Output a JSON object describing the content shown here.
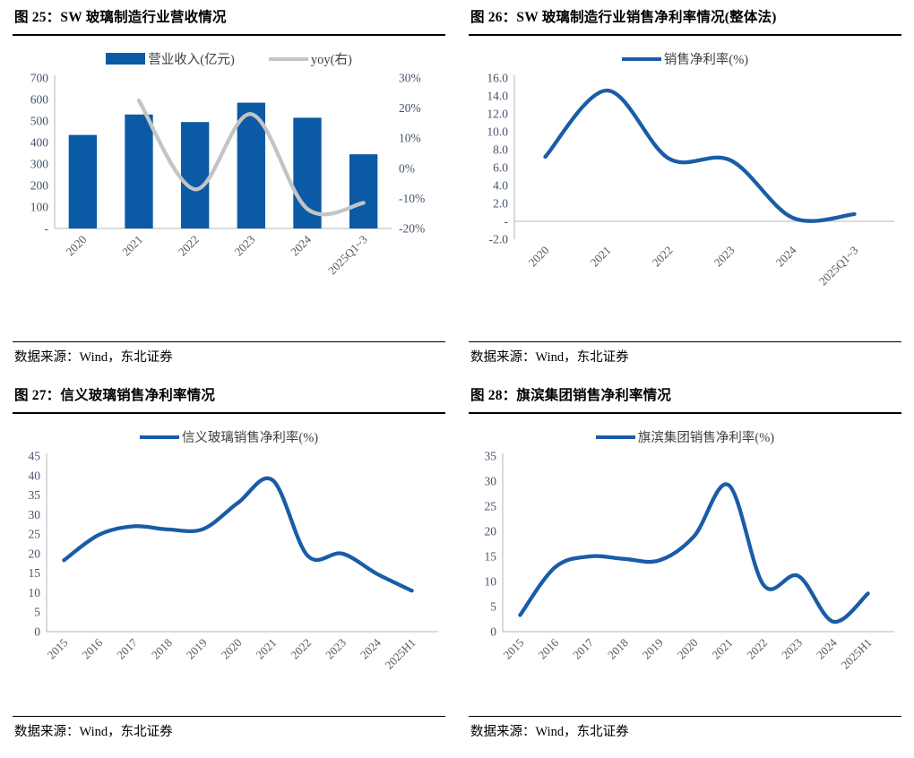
{
  "theme": {
    "bar_blue": "#0B5AA5",
    "line_blue": "#1A5CA8",
    "line_gray": "#C4C4C4",
    "axis_text": "#44546A",
    "category_text": "#595959",
    "axis_line": "#C5C5C5"
  },
  "panels": [
    {
      "title": "图 25：SW 玻璃制造行业营收情况",
      "source": "数据来源：Wind，东北证券"
    },
    {
      "title": "图 26：SW 玻璃制造行业销售净利率情况(整体法)",
      "source": "数据来源：Wind，东北证券"
    },
    {
      "title": "图 27：信义玻璃销售净利率情况",
      "source": "数据来源：Wind，东北证券"
    },
    {
      "title": "图 28：旗滨集团销售净利率情况",
      "source": "数据来源：Wind，东北证券"
    }
  ],
  "chart_data": [
    {
      "type": "bar",
      "title": "SW 玻璃制造行业营收情况",
      "categories": [
        "2020",
        "2021",
        "2022",
        "2023",
        "2024",
        "2025Q1~3"
      ],
      "series": [
        {
          "name": "营业收入(亿元)",
          "kind": "bar",
          "axis": "left",
          "color": "#0B5AA5",
          "values": [
            435,
            530,
            495,
            585,
            515,
            345
          ]
        },
        {
          "name": "yoy(右)",
          "kind": "line",
          "axis": "right",
          "color": "#C4C4C4",
          "values": [
            null,
            22.5,
            -7,
            18,
            -13.5,
            -11.5
          ]
        }
      ],
      "left_axis": {
        "min": 0,
        "max": 700,
        "tick_labels": [
          "700",
          "600",
          "500",
          "400",
          "300",
          "200",
          "100",
          "-"
        ]
      },
      "right_axis": {
        "min": -20,
        "max": 30,
        "tick_labels": [
          "30%",
          "20%",
          "10%",
          "0%",
          "-10%",
          "-20%"
        ]
      },
      "legend_position": "top",
      "grid": false
    },
    {
      "type": "line",
      "title": "SW 玻璃制造行业销售净利率情况(整体法)",
      "categories": [
        "2020",
        "2021",
        "2022",
        "2023",
        "2024",
        "2025Q1~3"
      ],
      "series": [
        {
          "name": "销售净利率(%)",
          "kind": "line",
          "axis": "left",
          "color": "#1A5CA8",
          "values": [
            7.2,
            14.6,
            7.0,
            6.8,
            0.4,
            0.8
          ]
        }
      ],
      "left_axis": {
        "min": -2,
        "max": 16,
        "tick_labels": [
          "16.0",
          "14.0",
          "12.0",
          "10.0",
          "8.0",
          "6.0",
          "4.0",
          "2.0",
          "-",
          "-2.0"
        ]
      },
      "legend_position": "top",
      "grid": false
    },
    {
      "type": "line",
      "title": "信义玻璃销售净利率情况",
      "categories": [
        "2015",
        "2016",
        "2017",
        "2018",
        "2019",
        "2020",
        "2021",
        "2022",
        "2023",
        "2024",
        "2025H1"
      ],
      "series": [
        {
          "name": "信义玻璃销售净利率(%)",
          "kind": "line",
          "axis": "left",
          "color": "#1A5CA8",
          "values": [
            18.3,
            24.8,
            27.0,
            26.2,
            26.3,
            33.0,
            38.8,
            19.5,
            20.0,
            14.8,
            10.5
          ]
        }
      ],
      "left_axis": {
        "min": 0,
        "max": 45,
        "tick_labels": [
          "45",
          "40",
          "35",
          "30",
          "25",
          "20",
          "15",
          "10",
          "5",
          "0"
        ]
      },
      "legend_position": "top",
      "grid": false
    },
    {
      "type": "line",
      "title": "旗滨集团销售净利率情况",
      "categories": [
        "2015",
        "2016",
        "2017",
        "2018",
        "2019",
        "2020",
        "2021",
        "2022",
        "2023",
        "2024",
        "2025H1"
      ],
      "series": [
        {
          "name": "旗滨集团销售净利率(%)",
          "kind": "line",
          "axis": "left",
          "color": "#1A5CA8",
          "values": [
            3.3,
            12.8,
            15.0,
            14.5,
            14.2,
            19.0,
            29.2,
            9.3,
            11.1,
            2.0,
            7.6
          ]
        }
      ],
      "left_axis": {
        "min": 0,
        "max": 35,
        "tick_labels": [
          "35",
          "30",
          "25",
          "20",
          "15",
          "10",
          "5",
          "0"
        ]
      },
      "legend_position": "top",
      "grid": false
    }
  ]
}
